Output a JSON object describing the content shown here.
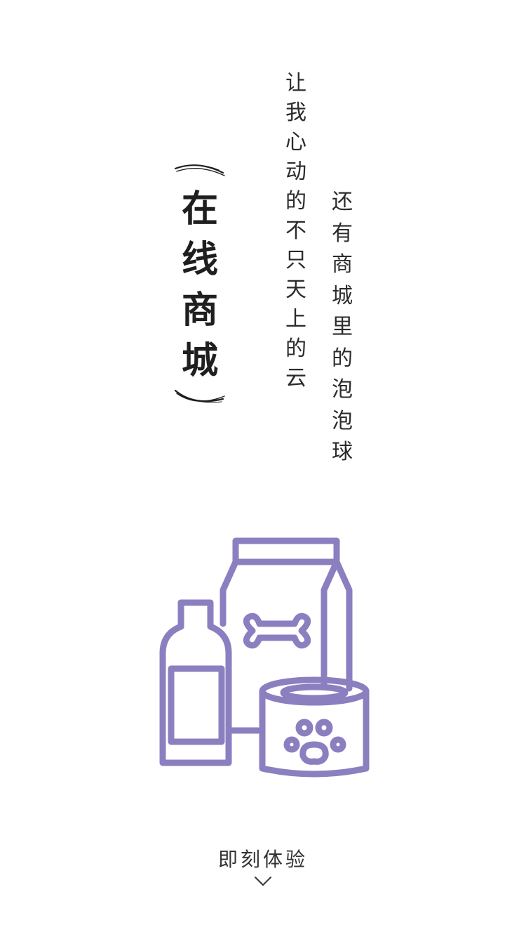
{
  "title": {
    "chars": [
      "在",
      "线",
      "商",
      "城"
    ]
  },
  "verse": {
    "line1": [
      "让",
      "我",
      "心",
      "动",
      "的",
      "不",
      "只",
      "天",
      "上",
      "的",
      "云"
    ],
    "line2": [
      "还",
      "有",
      "商",
      "城",
      "里",
      "的",
      "泡",
      "泡",
      "球"
    ]
  },
  "illustration": {
    "icon": "pet-supplies-icon",
    "color": "#8c7fc0"
  },
  "cta": {
    "label": "即刻体验",
    "icon": "chevron-down-icon"
  }
}
